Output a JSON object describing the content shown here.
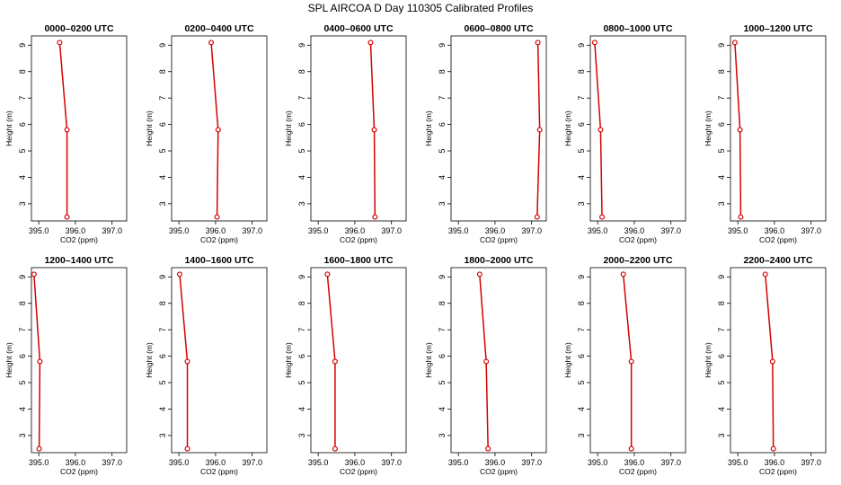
{
  "page": {
    "title": "SPL AIRCOA D  Day 110305  Calibrated Profiles"
  },
  "style": {
    "line_color": "#d40000",
    "axis_color": "#000000",
    "background": "#ffffff"
  },
  "chart_data": [
    {
      "type": "line",
      "title": "0000–0200 UTC",
      "xlabel": "CO2 (ppm)",
      "ylabel": "Height (m)",
      "xlim": [
        394.8,
        397.4
      ],
      "ylim": [
        2.35,
        9.35
      ],
      "xticks": [
        395.0,
        396.0,
        397.0
      ],
      "xtick_labels": [
        "395.0",
        "396.0",
        "397.0"
      ],
      "yticks": [
        3,
        4,
        5,
        6,
        7,
        8,
        9
      ],
      "ytick_labels": [
        "3",
        "4",
        "5",
        "6",
        "7",
        "8",
        "9"
      ],
      "grid": false,
      "series": [
        {
          "x": [
            395.77,
            395.77,
            395.57
          ],
          "y": [
            2.5,
            5.8,
            9.1
          ]
        }
      ]
    },
    {
      "type": "line",
      "title": "0200–0400 UTC",
      "xlabel": "CO2 (ppm)",
      "ylabel": "Height (m)",
      "xlim": [
        394.8,
        397.4
      ],
      "ylim": [
        2.35,
        9.35
      ],
      "xticks": [
        395.0,
        396.0,
        397.0
      ],
      "xtick_labels": [
        "395.0",
        "396.0",
        "397.0"
      ],
      "yticks": [
        3,
        4,
        5,
        6,
        7,
        8,
        9
      ],
      "ytick_labels": [
        "3",
        "4",
        "5",
        "6",
        "7",
        "8",
        "9"
      ],
      "grid": false,
      "series": [
        {
          "x": [
            396.04,
            396.07,
            395.88
          ],
          "y": [
            2.5,
            5.8,
            9.1
          ]
        }
      ]
    },
    {
      "type": "line",
      "title": "0400–0600 UTC",
      "xlabel": "CO2 (ppm)",
      "ylabel": "Height (m)",
      "xlim": [
        394.8,
        397.4
      ],
      "ylim": [
        2.35,
        9.35
      ],
      "xticks": [
        395.0,
        396.0,
        397.0
      ],
      "xtick_labels": [
        "395.0",
        "396.0",
        "397.0"
      ],
      "yticks": [
        3,
        4,
        5,
        6,
        7,
        8,
        9
      ],
      "ytick_labels": [
        "3",
        "4",
        "5",
        "6",
        "7",
        "8",
        "9"
      ],
      "grid": false,
      "series": [
        {
          "x": [
            396.55,
            396.53,
            396.43
          ],
          "y": [
            2.5,
            5.8,
            9.1
          ]
        }
      ]
    },
    {
      "type": "line",
      "title": "0600–0800 UTC",
      "xlabel": "CO2 (ppm)",
      "ylabel": "Height (m)",
      "xlim": [
        394.8,
        397.4
      ],
      "ylim": [
        2.35,
        9.35
      ],
      "xticks": [
        395.0,
        396.0,
        397.0
      ],
      "xtick_labels": [
        "395.0",
        "396.0",
        "397.0"
      ],
      "yticks": [
        3,
        4,
        5,
        6,
        7,
        8,
        9
      ],
      "ytick_labels": [
        "3",
        "4",
        "5",
        "6",
        "7",
        "8",
        "9"
      ],
      "grid": false,
      "series": [
        {
          "x": [
            397.15,
            397.22,
            397.17
          ],
          "y": [
            2.5,
            5.8,
            9.1
          ]
        }
      ]
    },
    {
      "type": "line",
      "title": "0800–1000 UTC",
      "xlabel": "CO2 (ppm)",
      "ylabel": "Height (m)",
      "xlim": [
        394.8,
        397.4
      ],
      "ylim": [
        2.35,
        9.35
      ],
      "xticks": [
        395.0,
        396.0,
        397.0
      ],
      "xtick_labels": [
        "395.0",
        "396.0",
        "397.0"
      ],
      "yticks": [
        3,
        4,
        5,
        6,
        7,
        8,
        9
      ],
      "ytick_labels": [
        "3",
        "4",
        "5",
        "6",
        "7",
        "8",
        "9"
      ],
      "grid": false,
      "series": [
        {
          "x": [
            395.12,
            395.08,
            394.92
          ],
          "y": [
            2.5,
            5.8,
            9.1
          ]
        }
      ]
    },
    {
      "type": "line",
      "title": "1000–1200 UTC",
      "xlabel": "CO2 (ppm)",
      "ylabel": "Height (m)",
      "xlim": [
        394.8,
        397.4
      ],
      "ylim": [
        2.35,
        9.35
      ],
      "xticks": [
        395.0,
        396.0,
        397.0
      ],
      "xtick_labels": [
        "395.0",
        "396.0",
        "397.0"
      ],
      "yticks": [
        3,
        4,
        5,
        6,
        7,
        8,
        9
      ],
      "ytick_labels": [
        "3",
        "4",
        "5",
        "6",
        "7",
        "8",
        "9"
      ],
      "grid": false,
      "series": [
        {
          "x": [
            395.08,
            395.06,
            394.92
          ],
          "y": [
            2.5,
            5.8,
            9.1
          ]
        }
      ]
    },
    {
      "type": "line",
      "title": "1200–1400 UTC",
      "xlabel": "CO2 (ppm)",
      "ylabel": "Height (m)",
      "xlim": [
        394.8,
        397.4
      ],
      "ylim": [
        2.35,
        9.35
      ],
      "xticks": [
        395.0,
        396.0,
        397.0
      ],
      "xtick_labels": [
        "395.0",
        "396.0",
        "397.0"
      ],
      "yticks": [
        3,
        4,
        5,
        6,
        7,
        8,
        9
      ],
      "ytick_labels": [
        "3",
        "4",
        "5",
        "6",
        "7",
        "8",
        "9"
      ],
      "grid": false,
      "series": [
        {
          "x": [
            395.01,
            395.03,
            394.87
          ],
          "y": [
            2.5,
            5.8,
            9.1
          ]
        }
      ]
    },
    {
      "type": "line",
      "title": "1400–1600 UTC",
      "xlabel": "CO2 (ppm)",
      "ylabel": "Height (m)",
      "xlim": [
        394.8,
        397.4
      ],
      "ylim": [
        2.35,
        9.35
      ],
      "xticks": [
        395.0,
        396.0,
        397.0
      ],
      "xtick_labels": [
        "395.0",
        "396.0",
        "397.0"
      ],
      "yticks": [
        3,
        4,
        5,
        6,
        7,
        8,
        9
      ],
      "ytick_labels": [
        "3",
        "4",
        "5",
        "6",
        "7",
        "8",
        "9"
      ],
      "grid": false,
      "series": [
        {
          "x": [
            395.23,
            395.23,
            395.02
          ],
          "y": [
            2.5,
            5.8,
            9.1
          ]
        }
      ]
    },
    {
      "type": "line",
      "title": "1600–1800 UTC",
      "xlabel": "CO2 (ppm)",
      "ylabel": "Height (m)",
      "xlim": [
        394.8,
        397.4
      ],
      "ylim": [
        2.35,
        9.35
      ],
      "xticks": [
        395.0,
        396.0,
        397.0
      ],
      "xtick_labels": [
        "395.0",
        "396.0",
        "397.0"
      ],
      "yticks": [
        3,
        4,
        5,
        6,
        7,
        8,
        9
      ],
      "ytick_labels": [
        "3",
        "4",
        "5",
        "6",
        "7",
        "8",
        "9"
      ],
      "grid": false,
      "series": [
        {
          "x": [
            395.46,
            395.46,
            395.25
          ],
          "y": [
            2.5,
            5.8,
            9.1
          ]
        }
      ]
    },
    {
      "type": "line",
      "title": "1800–2000 UTC",
      "xlabel": "CO2 (ppm)",
      "ylabel": "Height (m)",
      "xlim": [
        394.8,
        397.4
      ],
      "ylim": [
        2.35,
        9.35
      ],
      "xticks": [
        395.0,
        396.0,
        397.0
      ],
      "xtick_labels": [
        "395.0",
        "396.0",
        "397.0"
      ],
      "yticks": [
        3,
        4,
        5,
        6,
        7,
        8,
        9
      ],
      "ytick_labels": [
        "3",
        "4",
        "5",
        "6",
        "7",
        "8",
        "9"
      ],
      "grid": false,
      "series": [
        {
          "x": [
            395.81,
            395.76,
            395.58
          ],
          "y": [
            2.5,
            5.8,
            9.1
          ]
        }
      ]
    },
    {
      "type": "line",
      "title": "2000–2200 UTC",
      "xlabel": "CO2 (ppm)",
      "ylabel": "Height (m)",
      "xlim": [
        394.8,
        397.4
      ],
      "ylim": [
        2.35,
        9.35
      ],
      "xticks": [
        395.0,
        396.0,
        397.0
      ],
      "xtick_labels": [
        "395.0",
        "396.0",
        "397.0"
      ],
      "yticks": [
        3,
        4,
        5,
        6,
        7,
        8,
        9
      ],
      "ytick_labels": [
        "3",
        "4",
        "5",
        "6",
        "7",
        "8",
        "9"
      ],
      "grid": false,
      "series": [
        {
          "x": [
            395.92,
            395.92,
            395.7
          ],
          "y": [
            2.5,
            5.8,
            9.1
          ]
        }
      ]
    },
    {
      "type": "line",
      "title": "2200–2400 UTC",
      "xlabel": "CO2 (ppm)",
      "ylabel": "Height (m)",
      "xlim": [
        394.8,
        397.4
      ],
      "ylim": [
        2.35,
        9.35
      ],
      "xticks": [
        395.0,
        396.0,
        397.0
      ],
      "xtick_labels": [
        "395.0",
        "396.0",
        "397.0"
      ],
      "yticks": [
        3,
        4,
        5,
        6,
        7,
        8,
        9
      ],
      "ytick_labels": [
        "3",
        "4",
        "5",
        "6",
        "7",
        "8",
        "9"
      ],
      "grid": false,
      "series": [
        {
          "x": [
            395.97,
            395.95,
            395.75
          ],
          "y": [
            2.5,
            5.8,
            9.1
          ]
        }
      ]
    }
  ]
}
